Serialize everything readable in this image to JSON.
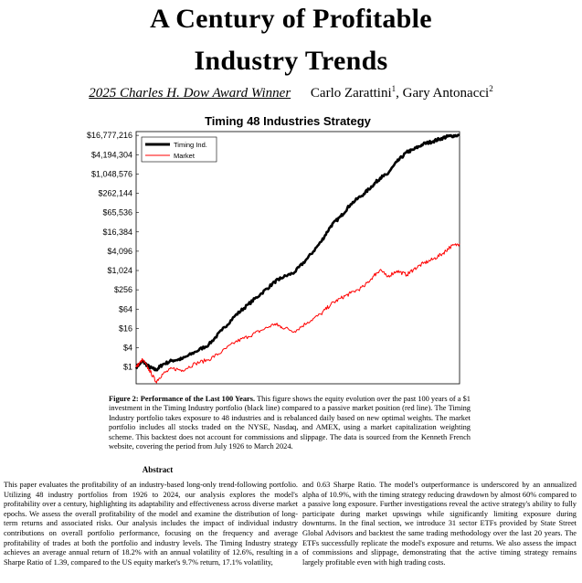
{
  "title": {
    "line1": "A Century of Profitable",
    "line2": "Industry Trends"
  },
  "byline": {
    "award": "2025 Charles H. Dow Award Winner",
    "author1": "Carlo Zarattini",
    "sup1": "1",
    "sep": ", ",
    "author2": "Gary Antonacci",
    "sup2": "2"
  },
  "caption": {
    "label": "Figure 2: Performance of the Last 100 Years.",
    "text": " This figure shows the equity evolution over the past 100 years of a $1 investment in the Timing Industry portfolio (black line) compared to a passive market position (red line). The Timing Industry portfolio takes exposure to 48 industries and is rebalanced daily based on new optimal weights. The market portfolio includes all stocks traded on the NYSE, Nasdaq, and AMEX, using a market capitalization weighting scheme. This backtest does not account for commissions and slippage. The data is sourced from the Kenneth French website, covering the period from July 1926 to March 2024."
  },
  "abstract": {
    "heading": "Abstract",
    "left": "This paper evaluates the profitability of an industry-based long-only trend-following portfolio. Utilizing 48 industry portfolios from 1926 to 2024, our analysis explores the model's profitability over a century, highlighting its adaptability and effectiveness across diverse market epochs. We assess the overall profitability of the model and examine the distribution of long-term returns and associated risks. Our analysis includes the impact of individual industry contributions on overall portfolio performance, focusing on the frequency and average profitability of trades at both the portfolio and industry levels. The Timing Industry strategy achieves an average annual return of 18.2% with an annual volatility of 12.6%, resulting in a Sharpe Ratio of 1.39, compared to the US equity market's 9.7% return, 17.1% volatility,",
    "right": "and 0.63 Sharpe Ratio. The model's outperformance is underscored by an annualized alpha of 10.9%, with the timing strategy reducing drawdown by almost 60% compared to a passive long exposure. Further investigations reveal the active strategy's ability to fully participate during market upswings while significantly limiting exposure during downturns. In the final section, we introduce 31 sector ETFs provided by State Street Global Advisors and backtest the same trading methodology over the last 20 years. The ETFs successfully replicate the model's exposure and returns. We also assess the impact of commissions and slippage, demonstrating that the active timing strategy remains largely profitable even with high trading costs."
  },
  "chart_data": {
    "type": "line",
    "title": "Timing 48 Industries Strategy",
    "yscale": "log2",
    "y_ticks": [
      1,
      4,
      16,
      64,
      256,
      1024,
      4096,
      16384,
      65536,
      262144,
      1048576,
      4194304,
      16777216
    ],
    "y_tick_labels": [
      "$1",
      "$4",
      "$16",
      "$64",
      "$256",
      "$1,024",
      "$4,096",
      "$16,384",
      "$65,536",
      "$262,144",
      "$1,048,576",
      "$4,194,304",
      "$16,777,216"
    ],
    "ylim": [
      0.3,
      22000000
    ],
    "x": [
      1926,
      1928,
      1930,
      1932,
      1934,
      1937,
      1940,
      1944,
      1948,
      1952,
      1956,
      1960,
      1964,
      1968,
      1970,
      1974,
      1978,
      1982,
      1985,
      1988,
      1991,
      1995,
      1998,
      2000,
      2002,
      2005,
      2008,
      2010,
      2013,
      2016,
      2019,
      2021,
      2024
    ],
    "xlim": [
      1926,
      2024
    ],
    "series": [
      {
        "name": "Timing Ind.",
        "color": "#000000",
        "values": [
          1.0,
          1.5,
          1.0,
          0.8,
          1.2,
          1.6,
          1.8,
          3.0,
          5.0,
          14,
          40,
          90,
          200,
          450,
          600,
          900,
          2500,
          8000,
          25000,
          50000,
          120000,
          250000,
          500000,
          800000,
          1000000,
          2500000,
          5000000,
          6000000,
          9000000,
          11000000,
          14000000,
          16000000,
          17000000
        ]
      },
      {
        "name": "Market",
        "color": "#ff0000",
        "values": [
          1.0,
          1.7,
          0.8,
          0.35,
          0.6,
          0.9,
          0.8,
          1.3,
          1.7,
          3.0,
          6.0,
          9.0,
          14,
          22,
          18,
          13,
          25,
          45,
          90,
          140,
          200,
          320,
          700,
          1100,
          650,
          1000,
          750,
          1100,
          1700,
          2300,
          3500,
          5500,
          7000
        ]
      }
    ],
    "legend": "top-left",
    "grid": false
  }
}
